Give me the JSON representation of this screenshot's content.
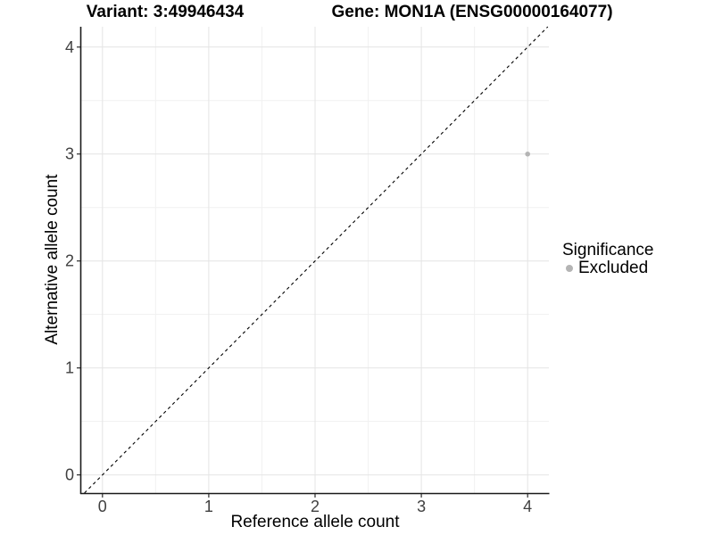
{
  "chart_data": {
    "type": "scatter",
    "title_left": "Variant: 3:49946434",
    "title_right": "Gene: MON1A (ENSG00000164077)",
    "xlabel": "Reference allele count",
    "ylabel": "Alternative allele count",
    "x_ticks": [
      0,
      1,
      2,
      3,
      4
    ],
    "y_ticks": [
      0,
      1,
      2,
      3,
      4
    ],
    "x_minor_ticks": [
      0.5,
      1.5,
      2.5,
      3.5
    ],
    "y_minor_ticks": [
      0.5,
      1.5,
      2.5,
      3.5
    ],
    "xlim": [
      -0.2,
      4.2
    ],
    "ylim": [
      -0.17,
      4.19
    ],
    "grid": "major and minor on, white panel",
    "reference_line": {
      "type": "identity",
      "slope": 1,
      "intercept": 0,
      "style": "dashed",
      "color": "#000000"
    },
    "series": [
      {
        "name": "Excluded",
        "color": "#b4b4b4",
        "points": [
          {
            "x": 4,
            "y": 3
          }
        ]
      }
    ],
    "legend": {
      "title": "Significance",
      "position": "right",
      "entries": [
        {
          "label": "Excluded",
          "color": "#b4b4b4",
          "marker": "circle"
        }
      ]
    },
    "colors": {
      "grid_major": "#e4e4e4",
      "grid_minor": "#f1f1f1",
      "axis_line": "#1a1a1a",
      "tick_text": "#404040",
      "point": "#b4b4b4"
    }
  }
}
